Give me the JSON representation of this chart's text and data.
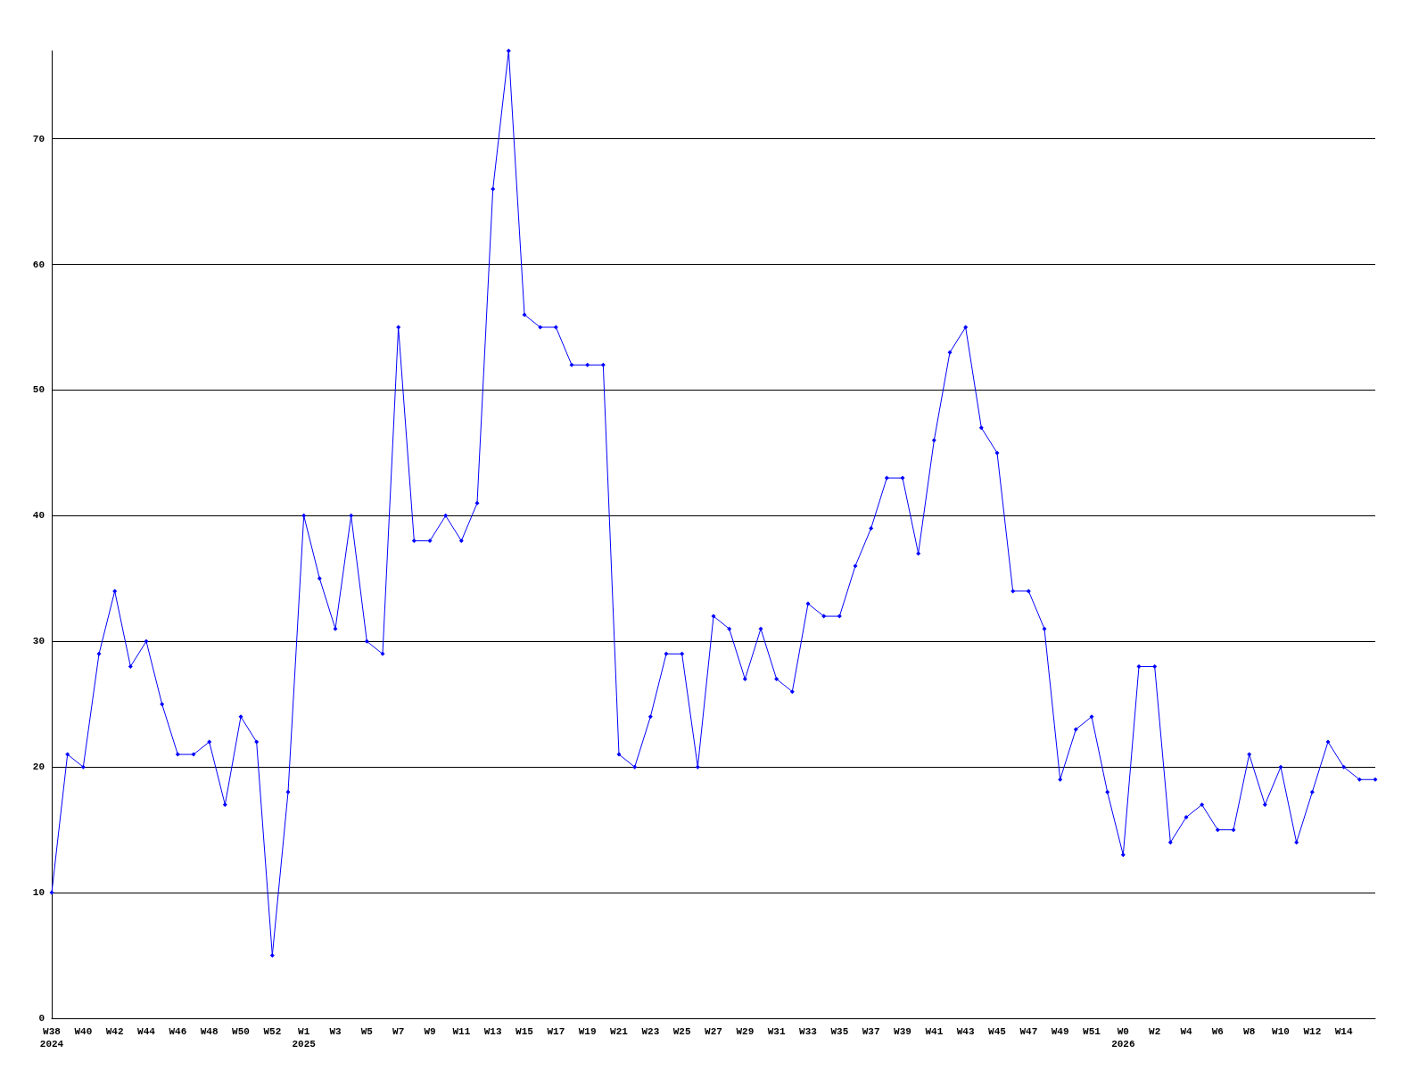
{
  "chart_data": {
    "type": "line",
    "categories": [
      "W38\n2024",
      null,
      "W40",
      null,
      "W42",
      null,
      "W44",
      null,
      "W46",
      null,
      "W48",
      null,
      "W50",
      null,
      "W52",
      null,
      "W1\n2025",
      null,
      "W3",
      null,
      "W5",
      null,
      "W7",
      null,
      "W9",
      null,
      "W11",
      null,
      "W13",
      null,
      "W15",
      null,
      "W17",
      null,
      "W19",
      null,
      "W21",
      null,
      "W23",
      null,
      "W25",
      null,
      "W27",
      null,
      "W29",
      null,
      "W31",
      null,
      "W33",
      null,
      "W35",
      null,
      "W37",
      null,
      "W39",
      null,
      "W41",
      null,
      "W43",
      null,
      "W45",
      null,
      "W47",
      null,
      "W49",
      null,
      "W51",
      null,
      "W0\n2026",
      null,
      "W2",
      null,
      "W4",
      null,
      "W6",
      null,
      "W8",
      null,
      "W10",
      null,
      "W12",
      null,
      "W14",
      null,
      null
    ],
    "series": [
      {
        "color": "#0000ff",
        "values": [
          10,
          21,
          20,
          29,
          34,
          28,
          30,
          25,
          21,
          21,
          22,
          17,
          24,
          22,
          5,
          18,
          40,
          35,
          31,
          40,
          30,
          29,
          55,
          38,
          38,
          40,
          38,
          41,
          66,
          77,
          56,
          55,
          55,
          52,
          52,
          52,
          21,
          20,
          24,
          29,
          29,
          20,
          32,
          31,
          27,
          31,
          27,
          26,
          33,
          32,
          32,
          36,
          39,
          43,
          43,
          37,
          46,
          53,
          55,
          47,
          45,
          34,
          34,
          31,
          19,
          23,
          24,
          18,
          13,
          28,
          28,
          14,
          16,
          17,
          15,
          15,
          21,
          17,
          20,
          14,
          18,
          22,
          20,
          19,
          19
        ]
      }
    ],
    "ylim": [
      0,
      77
    ],
    "yticks": [
      0,
      10,
      20,
      30,
      40,
      50,
      60,
      70
    ],
    "grid": "y",
    "marker": "diamond",
    "line_style": "solid"
  }
}
